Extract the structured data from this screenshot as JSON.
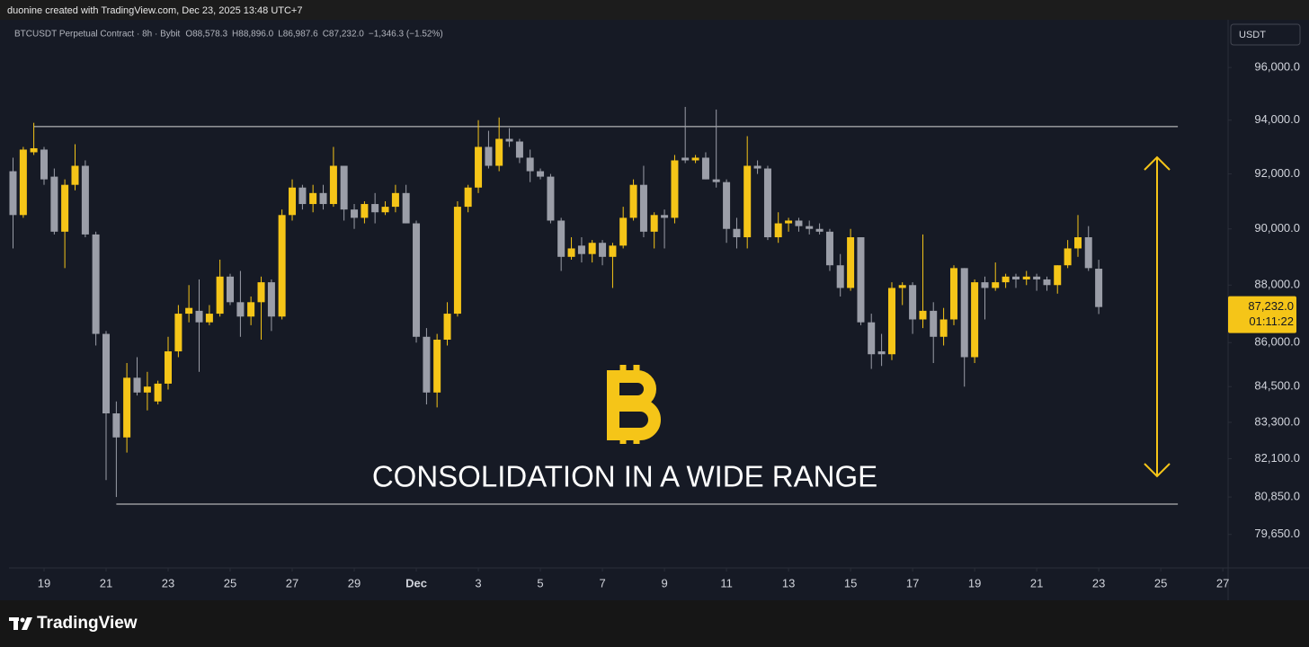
{
  "attribution": "duonine created with TradingView.com, Dec 23, 2025 13:48 UTC+7",
  "brand": "TradingView",
  "chart_data": {
    "type": "candlestick",
    "legend": {
      "symbol": "BTCUSDT Perpetual Contract · 8h · Bybit",
      "open": "O88,578.3",
      "high": "H88,896.0",
      "low": "L86,987.6",
      "close": "C87,232.0",
      "change": "−1,346.3 (−1.52%)"
    },
    "currency": "USDT",
    "annotation": "CONSOLIDATION IN A WIDE RANGE",
    "log_scale": true,
    "grid": false,
    "up_color": "#f5c518",
    "down_color": "#9b9ea8",
    "ylim": [
      78590,
      97850
    ],
    "yticks": [
      {
        "value": 96000,
        "label": "96,000.0"
      },
      {
        "value": 94000,
        "label": "94,000.0"
      },
      {
        "value": 92000,
        "label": "92,000.0"
      },
      {
        "value": 90000,
        "label": "90,000.0"
      },
      {
        "value": 88000,
        "label": "88,000.0"
      },
      {
        "value": 86000,
        "label": "86,000.0"
      },
      {
        "value": 84500,
        "label": "84,500.0"
      },
      {
        "value": 83300,
        "label": "83,300.0"
      },
      {
        "value": 82100,
        "label": "82,100.0"
      },
      {
        "value": 80850,
        "label": "80,850.0"
      },
      {
        "value": 79650,
        "label": "79,650.0"
      }
    ],
    "xlim": [
      -1.13,
      38.17
    ],
    "xticks": [
      {
        "value": 0,
        "label": "19"
      },
      {
        "value": 2,
        "label": "21"
      },
      {
        "value": 4,
        "label": "23"
      },
      {
        "value": 6,
        "label": "25"
      },
      {
        "value": 8,
        "label": "27"
      },
      {
        "value": 10,
        "label": "29"
      },
      {
        "value": 12,
        "label": "Dec"
      },
      {
        "value": 14,
        "label": "3"
      },
      {
        "value": 16,
        "label": "5"
      },
      {
        "value": 18,
        "label": "7"
      },
      {
        "value": 20,
        "label": "9"
      },
      {
        "value": 22,
        "label": "11"
      },
      {
        "value": 24,
        "label": "13"
      },
      {
        "value": 26,
        "label": "15"
      },
      {
        "value": 28,
        "label": "17"
      },
      {
        "value": 30,
        "label": "19"
      },
      {
        "value": 32,
        "label": "21"
      },
      {
        "value": 34,
        "label": "23"
      },
      {
        "value": 36,
        "label": "25"
      },
      {
        "value": 38,
        "label": "27"
      }
    ],
    "last_price": {
      "value": 87232,
      "label": "87,232.0"
    },
    "countdown": "01:11:22",
    "levels": [
      {
        "value": 93760,
        "from": -0.33,
        "to": 36.55
      },
      {
        "value": 80620,
        "from": 2.33,
        "to": 36.55
      }
    ],
    "x": [
      -1,
      -0.67,
      -0.33,
      0,
      0.33,
      0.67,
      1,
      1.33,
      1.67,
      2,
      2.33,
      2.67,
      3,
      3.33,
      3.67,
      4,
      4.33,
      4.67,
      5,
      5.33,
      5.67,
      6,
      6.33,
      6.67,
      7,
      7.33,
      7.67,
      8,
      8.33,
      8.67,
      9,
      9.33,
      9.67,
      10,
      10.33,
      10.67,
      11,
      11.33,
      11.67,
      12,
      12.33,
      12.67,
      13,
      13.33,
      13.67,
      14,
      14.33,
      14.67,
      15,
      15.33,
      15.67,
      16,
      16.33,
      16.67,
      17,
      17.33,
      17.67,
      18,
      18.33,
      18.67,
      19,
      19.33,
      19.67,
      20,
      20.33,
      20.67,
      21,
      21.33,
      21.67,
      22,
      22.33,
      22.67,
      23,
      23.33,
      23.67,
      24,
      24.33,
      24.67,
      25,
      25.33,
      25.67,
      26,
      26.33,
      26.67,
      27,
      27.33,
      27.67,
      28,
      28.33,
      28.67,
      29,
      29.33,
      29.67,
      30,
      30.33,
      30.67,
      31,
      31.33,
      31.67,
      32,
      32.33,
      32.67,
      33,
      33.33,
      33.67,
      34
    ],
    "candles": [
      [
        92100,
        92600,
        89300,
        90500
      ],
      [
        90500,
        93000,
        90400,
        92900
      ],
      [
        92800,
        93900,
        92700,
        92950
      ],
      [
        92900,
        93000,
        91600,
        91800
      ],
      [
        91900,
        92200,
        89800,
        89900
      ],
      [
        89900,
        91800,
        88600,
        91600
      ],
      [
        91600,
        93100,
        91400,
        92300
      ],
      [
        92300,
        92500,
        89700,
        89800
      ],
      [
        89800,
        89900,
        85900,
        86300
      ],
      [
        86300,
        86400,
        81400,
        83600
      ],
      [
        83600,
        84000,
        80850,
        82800
      ],
      [
        82800,
        85300,
        82300,
        84800
      ],
      [
        84800,
        85500,
        84200,
        84300
      ],
      [
        84300,
        85000,
        83700,
        84500
      ],
      [
        84000,
        84700,
        83900,
        84600
      ],
      [
        84600,
        86200,
        84400,
        85700
      ],
      [
        85700,
        87300,
        85500,
        87000
      ],
      [
        87000,
        88000,
        86700,
        87200
      ],
      [
        87100,
        88200,
        85000,
        86700
      ],
      [
        86700,
        87300,
        86600,
        87000
      ],
      [
        87000,
        88900,
        86900,
        88300
      ],
      [
        88300,
        88400,
        87300,
        87400
      ],
      [
        87400,
        88500,
        86200,
        86900
      ],
      [
        86900,
        87600,
        86600,
        87400
      ],
      [
        87400,
        88300,
        86100,
        88100
      ],
      [
        88100,
        88200,
        86400,
        86900
      ],
      [
        86900,
        90700,
        86800,
        90500
      ],
      [
        90500,
        91800,
        90300,
        91500
      ],
      [
        91500,
        91600,
        90700,
        90900
      ],
      [
        90900,
        91600,
        90600,
        91300
      ],
      [
        91300,
        91600,
        90700,
        90900
      ],
      [
        90900,
        93000,
        90800,
        92300
      ],
      [
        92300,
        92300,
        90300,
        90700
      ],
      [
        90700,
        90900,
        90000,
        90400
      ],
      [
        90400,
        91000,
        90200,
        90900
      ],
      [
        90900,
        91300,
        90200,
        90600
      ],
      [
        90600,
        91000,
        90500,
        90800
      ],
      [
        90800,
        91600,
        90600,
        91300
      ],
      [
        91300,
        91600,
        90200,
        90200
      ],
      [
        90200,
        90300,
        86000,
        86200
      ],
      [
        86200,
        86500,
        83900,
        84300
      ],
      [
        84300,
        86300,
        83800,
        86100
      ],
      [
        86100,
        87400,
        85900,
        87000
      ],
      [
        87000,
        91000,
        86900,
        90800
      ],
      [
        90800,
        91600,
        90600,
        91500
      ],
      [
        91500,
        94000,
        91300,
        93000
      ],
      [
        93000,
        93600,
        92200,
        92300
      ],
      [
        92300,
        94100,
        92100,
        93300
      ],
      [
        93300,
        93700,
        93000,
        93200
      ],
      [
        93200,
        93300,
        92400,
        92600
      ],
      [
        92600,
        92900,
        91700,
        92100
      ],
      [
        92100,
        92200,
        91800,
        91900
      ],
      [
        91900,
        92000,
        90200,
        90300
      ],
      [
        90300,
        90400,
        88500,
        89000
      ],
      [
        89000,
        89700,
        88900,
        89300
      ],
      [
        89400,
        89700,
        88800,
        89100
      ],
      [
        89100,
        89600,
        88800,
        89500
      ],
      [
        89500,
        89600,
        88700,
        89000
      ],
      [
        89000,
        89500,
        87900,
        89400
      ],
      [
        89400,
        90800,
        89300,
        90400
      ],
      [
        90400,
        91800,
        90300,
        91600
      ],
      [
        91600,
        92300,
        89700,
        89900
      ],
      [
        89900,
        90600,
        89300,
        90500
      ],
      [
        90500,
        90700,
        89300,
        90400
      ],
      [
        90400,
        92700,
        90200,
        92500
      ],
      [
        92600,
        94500,
        92400,
        92500
      ],
      [
        92500,
        92700,
        92400,
        92600
      ],
      [
        92600,
        92800,
        91800,
        91800
      ],
      [
        91800,
        94400,
        91500,
        91700
      ],
      [
        91700,
        91800,
        89500,
        90000
      ],
      [
        90000,
        90400,
        89300,
        89700
      ],
      [
        89700,
        93400,
        89300,
        92300
      ],
      [
        92300,
        92500,
        92000,
        92200
      ],
      [
        92200,
        92300,
        89600,
        89700
      ],
      [
        89700,
        90600,
        89500,
        90200
      ],
      [
        90200,
        90400,
        89900,
        90300
      ],
      [
        90300,
        90400,
        89900,
        90100
      ],
      [
        90100,
        90300,
        89800,
        90000
      ],
      [
        90000,
        90200,
        89800,
        89900
      ],
      [
        89900,
        90000,
        88500,
        88700
      ],
      [
        88700,
        89100,
        87600,
        87900
      ],
      [
        87900,
        90000,
        87800,
        89700
      ],
      [
        89700,
        89700,
        86600,
        86700
      ],
      [
        86700,
        87000,
        85100,
        85600
      ],
      [
        85700,
        86300,
        85200,
        85600
      ],
      [
        85600,
        88100,
        85400,
        87900
      ],
      [
        87900,
        88100,
        87300,
        88000
      ],
      [
        88000,
        88100,
        86300,
        86800
      ],
      [
        86800,
        89800,
        86500,
        87100
      ],
      [
        87100,
        87400,
        85300,
        86200
      ],
      [
        86200,
        87200,
        85900,
        86800
      ],
      [
        86800,
        88700,
        86600,
        88600
      ],
      [
        88600,
        88600,
        84500,
        85500
      ],
      [
        85500,
        88200,
        85300,
        88100
      ],
      [
        88100,
        88300,
        86800,
        87900
      ],
      [
        87900,
        88800,
        87800,
        88100
      ],
      [
        88100,
        88400,
        87900,
        88300
      ],
      [
        88300,
        88400,
        87900,
        88200
      ],
      [
        88200,
        88500,
        88000,
        88300
      ],
      [
        88300,
        88400,
        87800,
        88200
      ],
      [
        88200,
        88300,
        87800,
        88000
      ],
      [
        88000,
        88700,
        87700,
        88700
      ],
      [
        88700,
        89600,
        88600,
        89300
      ],
      [
        89300,
        90500,
        89000,
        89700
      ],
      [
        89700,
        90100,
        88500,
        88600
      ],
      [
        88578.3,
        88896,
        86987.6,
        87232
      ]
    ]
  }
}
